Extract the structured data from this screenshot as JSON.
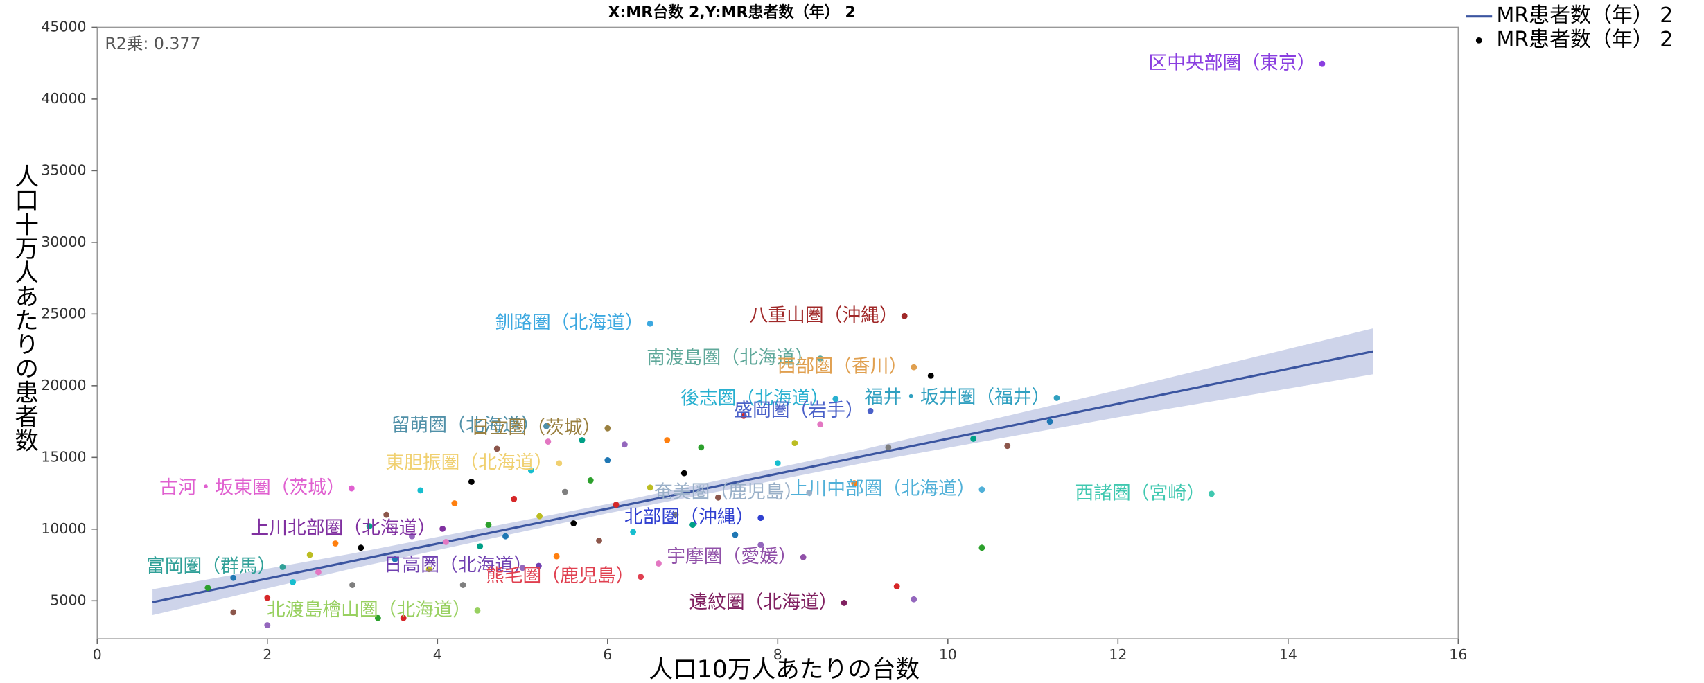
{
  "chart_data": {
    "type": "scatter",
    "title": "X:MR台数 2,Y:MR患者数（年） 2",
    "xlabel": "人口10万人あたりの台数",
    "ylabel": "人口十万人あたりの患者数",
    "annotation": "R2乗: 0.377",
    "xlim": [
      0,
      16
    ],
    "ylim": [
      2350,
      45000
    ],
    "xticks": [
      0,
      2,
      4,
      6,
      8,
      10,
      12,
      14,
      16
    ],
    "yticks": [
      5000,
      10000,
      15000,
      20000,
      25000,
      30000,
      35000,
      40000,
      45000
    ],
    "legend": "top-right",
    "band_color": "#c5cde6",
    "series": [
      {
        "name": "MR患者数（年） 2",
        "color": "#3b55a0",
        "kind": "fit",
        "x": [
          0.65,
          3,
          6,
          9,
          12,
          15
        ],
        "values": [
          4900,
          7766,
          11424,
          15083,
          18741,
          22400
        ],
        "band_upper": [
          5800,
          8300,
          11750,
          15550,
          19700,
          24000
        ],
        "band_lower": [
          4000,
          7250,
          11100,
          14600,
          17800,
          20800
        ]
      },
      {
        "name": "MR患者数（年） 2",
        "color": "#000000",
        "kind": "points",
        "palette": [
          "#2ca02c",
          "#8c564b",
          "#1f77b4",
          "#d62728",
          "#9467bd",
          "#17becf",
          "#bcbd22",
          "#e377c2",
          "#ff7f0e",
          "#7f7f7f",
          "#000000",
          "#00a087"
        ],
        "x": [
          1.3,
          1.6,
          1.6,
          2.0,
          2.0,
          2.3,
          2.5,
          2.6,
          2.8,
          3.0,
          3.1,
          3.2,
          3.3,
          3.4,
          3.5,
          3.6,
          3.7,
          3.8,
          3.9,
          4.1,
          4.2,
          4.3,
          4.4,
          4.5,
          4.6,
          4.7,
          4.8,
          4.9,
          5.0,
          5.1,
          5.2,
          5.3,
          5.4,
          5.5,
          5.6,
          5.7,
          5.8,
          5.9,
          6.0,
          6.1,
          6.2,
          6.3,
          6.5,
          6.6,
          6.7,
          6.8,
          6.9,
          7.0,
          7.1,
          7.3,
          7.5,
          7.6,
          7.8,
          8.0,
          8.2,
          8.5,
          8.9,
          9.3,
          9.8,
          10.3,
          10.4,
          10.7,
          11.2,
          9.4,
          9.6
        ],
        "values": [
          5900,
          4200,
          6600,
          5200,
          3300,
          6300,
          8200,
          7000,
          9000,
          6100,
          8700,
          10200,
          3800,
          11000,
          7900,
          3800,
          9500,
          12700,
          7200,
          9100,
          11800,
          6100,
          13300,
          8800,
          10300,
          15600,
          9500,
          12100,
          7300,
          14100,
          10900,
          16100,
          8100,
          12600,
          10400,
          16200,
          13400,
          9200,
          14800,
          11700,
          15900,
          9800,
          12900,
          7600,
          16200,
          11000,
          13900,
          10300,
          15700,
          12200,
          9600,
          17900,
          8900,
          14600,
          16000,
          17300,
          13200,
          15700,
          20700,
          16300,
          8700,
          15800,
          17500,
          6000,
          5100
        ]
      }
    ],
    "labeled_points": [
      {
        "label": "区中央部圏（東京）",
        "x": 14.4,
        "y": 42450,
        "color": "#8a3ee0"
      },
      {
        "label": "釧路圏（北海道）",
        "x": 6.5,
        "y": 24330,
        "color": "#3ca8e0"
      },
      {
        "label": "八重山圏（沖縄）",
        "x": 9.49,
        "y": 24860,
        "color": "#a02828"
      },
      {
        "label": "南渡島圏（北海道）",
        "x": 8.5,
        "y": 21900,
        "color": "#5fa89a"
      },
      {
        "label": "西部圏（香川）",
        "x": 9.6,
        "y": 21290,
        "color": "#e0a050"
      },
      {
        "label": "後志圏（北海道）",
        "x": 8.68,
        "y": 19080,
        "color": "#28b0d0"
      },
      {
        "label": "盛岡圏（岩手）",
        "x": 9.09,
        "y": 18240,
        "color": "#4a60c8"
      },
      {
        "label": "福井・坂井圏（福井）",
        "x": 11.28,
        "y": 19150,
        "color": "#30a0c0"
      },
      {
        "label": "留萌圏（北海道）",
        "x": 5.28,
        "y": 17180,
        "color": "#5090a8"
      },
      {
        "label": "日立圏（茨城）",
        "x": 6.0,
        "y": 17030,
        "color": "#9a8040"
      },
      {
        "label": "東胆振圏（北海道）",
        "x": 5.43,
        "y": 14590,
        "color": "#f0d070"
      },
      {
        "label": "古河・坂東圏（茨城）",
        "x": 2.99,
        "y": 12840,
        "color": "#e060d0"
      },
      {
        "label": "上川中部圏（北海道）",
        "x": 10.4,
        "y": 12760,
        "color": "#50b0d8"
      },
      {
        "label": "奄美圏（鹿児島）",
        "x": 8.37,
        "y": 12530,
        "color": "#9ab0c8"
      },
      {
        "label": "上川北部圏（北海道）",
        "x": 4.06,
        "y": 10020,
        "color": "#8030a0"
      },
      {
        "label": "北部圏（沖縄）",
        "x": 7.8,
        "y": 10780,
        "color": "#3040d0"
      },
      {
        "label": "西諸圏（宮崎）",
        "x": 13.1,
        "y": 12460,
        "color": "#40c8b0"
      },
      {
        "label": "宇摩圏（愛媛）",
        "x": 8.3,
        "y": 8040,
        "color": "#9050a8"
      },
      {
        "label": "富岡圏（群馬）",
        "x": 2.18,
        "y": 7360,
        "color": "#30a098"
      },
      {
        "label": "日高圏（北海道）",
        "x": 5.19,
        "y": 7430,
        "color": "#7040b0"
      },
      {
        "label": "熊毛圏（鹿児島）",
        "x": 6.39,
        "y": 6670,
        "color": "#e04050"
      },
      {
        "label": "遠紋圏（北海道）",
        "x": 8.78,
        "y": 4850,
        "color": "#802060"
      },
      {
        "label": "北渡島檜山圏（北海道）",
        "x": 4.47,
        "y": 4320,
        "color": "#98d060"
      }
    ]
  }
}
